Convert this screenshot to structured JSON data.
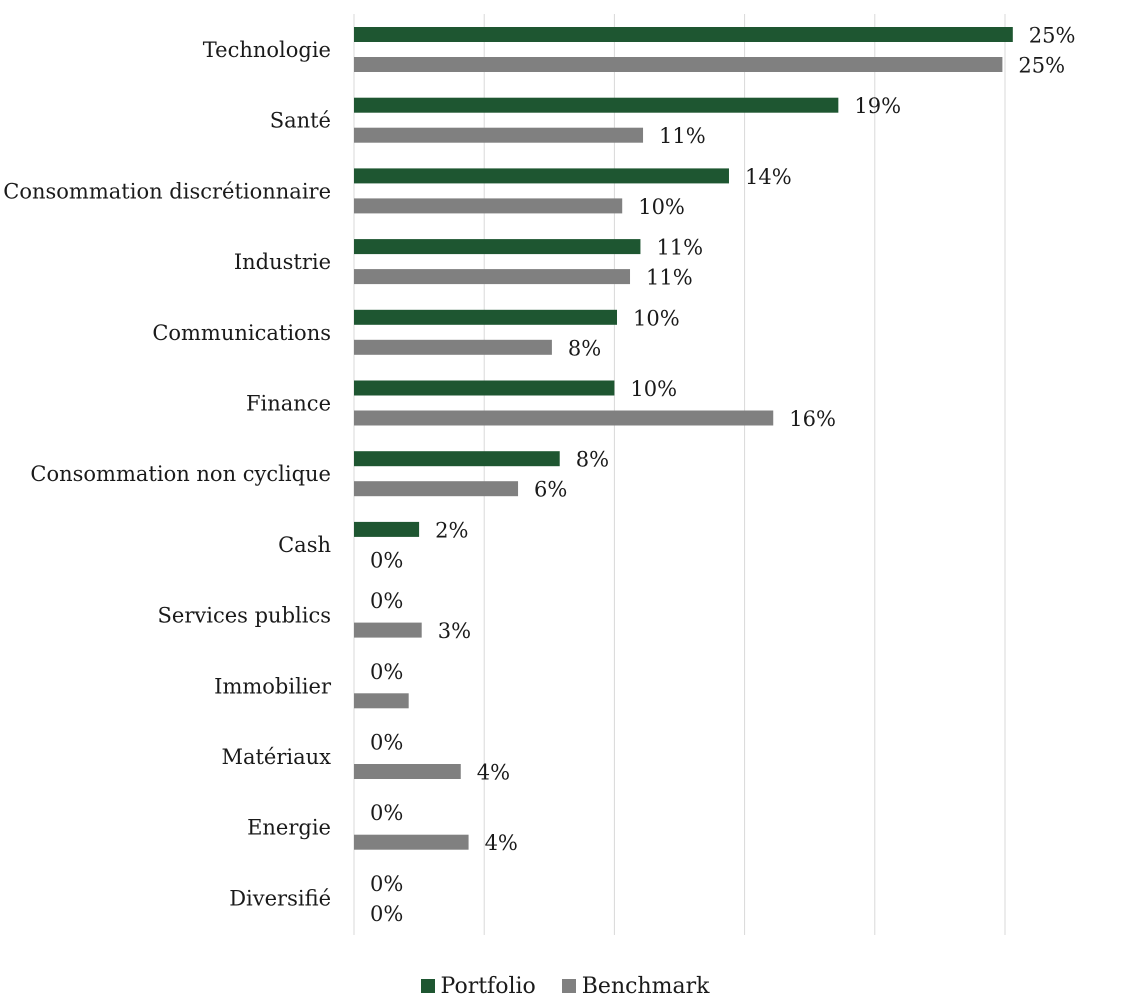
{
  "chart_data": {
    "type": "bar",
    "orientation": "horizontal",
    "categories": [
      "Technologie",
      "Santé",
      "Consommation discrétionnaire",
      "Industrie",
      "Communications",
      "Finance",
      "Consommation non cyclique",
      "Cash",
      "Services publics",
      "Immobilier",
      "Matériaux",
      "Energie",
      "Diversifié"
    ],
    "series": [
      {
        "name": "Portfolio",
        "color": "#1e5631",
        "values": [
          25.3,
          18.6,
          14.4,
          11.0,
          10.1,
          10.0,
          7.9,
          2.5,
          0,
          0,
          0,
          0,
          0
        ],
        "labels": [
          "25%",
          "19%",
          "14%",
          "11%",
          "10%",
          "10%",
          "8%",
          "2%",
          "0%",
          "0%",
          "0%",
          "0%",
          "0%"
        ]
      },
      {
        "name": "Benchmark",
        "color": "#808080",
        "values": [
          24.9,
          11.1,
          10.3,
          10.6,
          7.6,
          16.1,
          6.3,
          0,
          2.6,
          2.1,
          4.1,
          4.4,
          0
        ],
        "labels": [
          "25%",
          "11%",
          "10%",
          "11%",
          "8%",
          "16%",
          "6%",
          "0%",
          "3%",
          "",
          "4%",
          "4%",
          "0%"
        ]
      }
    ],
    "xlim": [
      0,
      25
    ],
    "x_gridlines": [
      0,
      5,
      10,
      15,
      20,
      25
    ],
    "grid": true,
    "legend_position": "bottom"
  },
  "legend": {
    "items": [
      {
        "label": "Portfolio",
        "color": "#1e5631"
      },
      {
        "label": "Benchmark",
        "color": "#808080"
      }
    ]
  }
}
